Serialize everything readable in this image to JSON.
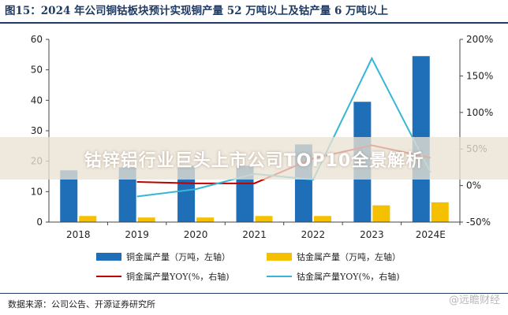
{
  "title": "图15：2024 年公司铜钴板块预计实现铜产量 52 万吨以上及钴产量 6 万吨以上",
  "banner": "钴锌铝行业巨头上市公司TOP10全景解析",
  "source": "数据来源：公司公告、开源证券研究所",
  "watermark": "@远瞻财经",
  "colors": {
    "copper_bar": "#1f6fb8",
    "cobalt_bar": "#f5c000",
    "copper_line": "#c00000",
    "cobalt_line": "#36b6d8",
    "title": "#1f3b63"
  },
  "chart_data": {
    "type": "bar",
    "categories": [
      "2018",
      "2019",
      "2020",
      "2021",
      "2022",
      "2023",
      "2024E"
    ],
    "series": [
      {
        "name": "铜金属产量（万吨，左轴）",
        "type": "bar",
        "axis": "left",
        "values": [
          17,
          18,
          18.5,
          18.5,
          25.5,
          39.5,
          54.5
        ]
      },
      {
        "name": "钴金属产量（万吨，左轴）",
        "type": "bar",
        "axis": "left",
        "values": [
          2,
          1.5,
          1.5,
          2,
          2,
          5.5,
          6.5
        ]
      },
      {
        "name": "铜金属产量YOY(%，右轴)",
        "type": "line",
        "axis": "right",
        "values": [
          null,
          5,
          3,
          3,
          37,
          55,
          38
        ]
      },
      {
        "name": "钴金属产量YOY(%，右轴)",
        "type": "line",
        "axis": "right",
        "values": [
          null,
          -15,
          -5,
          16,
          8,
          174,
          18
        ]
      }
    ],
    "left_axis": {
      "ylim": [
        0,
        60
      ],
      "ticks": [
        0,
        10,
        20,
        30,
        40,
        50,
        60
      ]
    },
    "right_axis": {
      "ylim": [
        -50,
        200
      ],
      "ticks": [
        "-50%",
        "0%",
        "50%",
        "100%",
        "150%",
        "200%"
      ]
    },
    "legend": "bottom",
    "grid": false
  }
}
